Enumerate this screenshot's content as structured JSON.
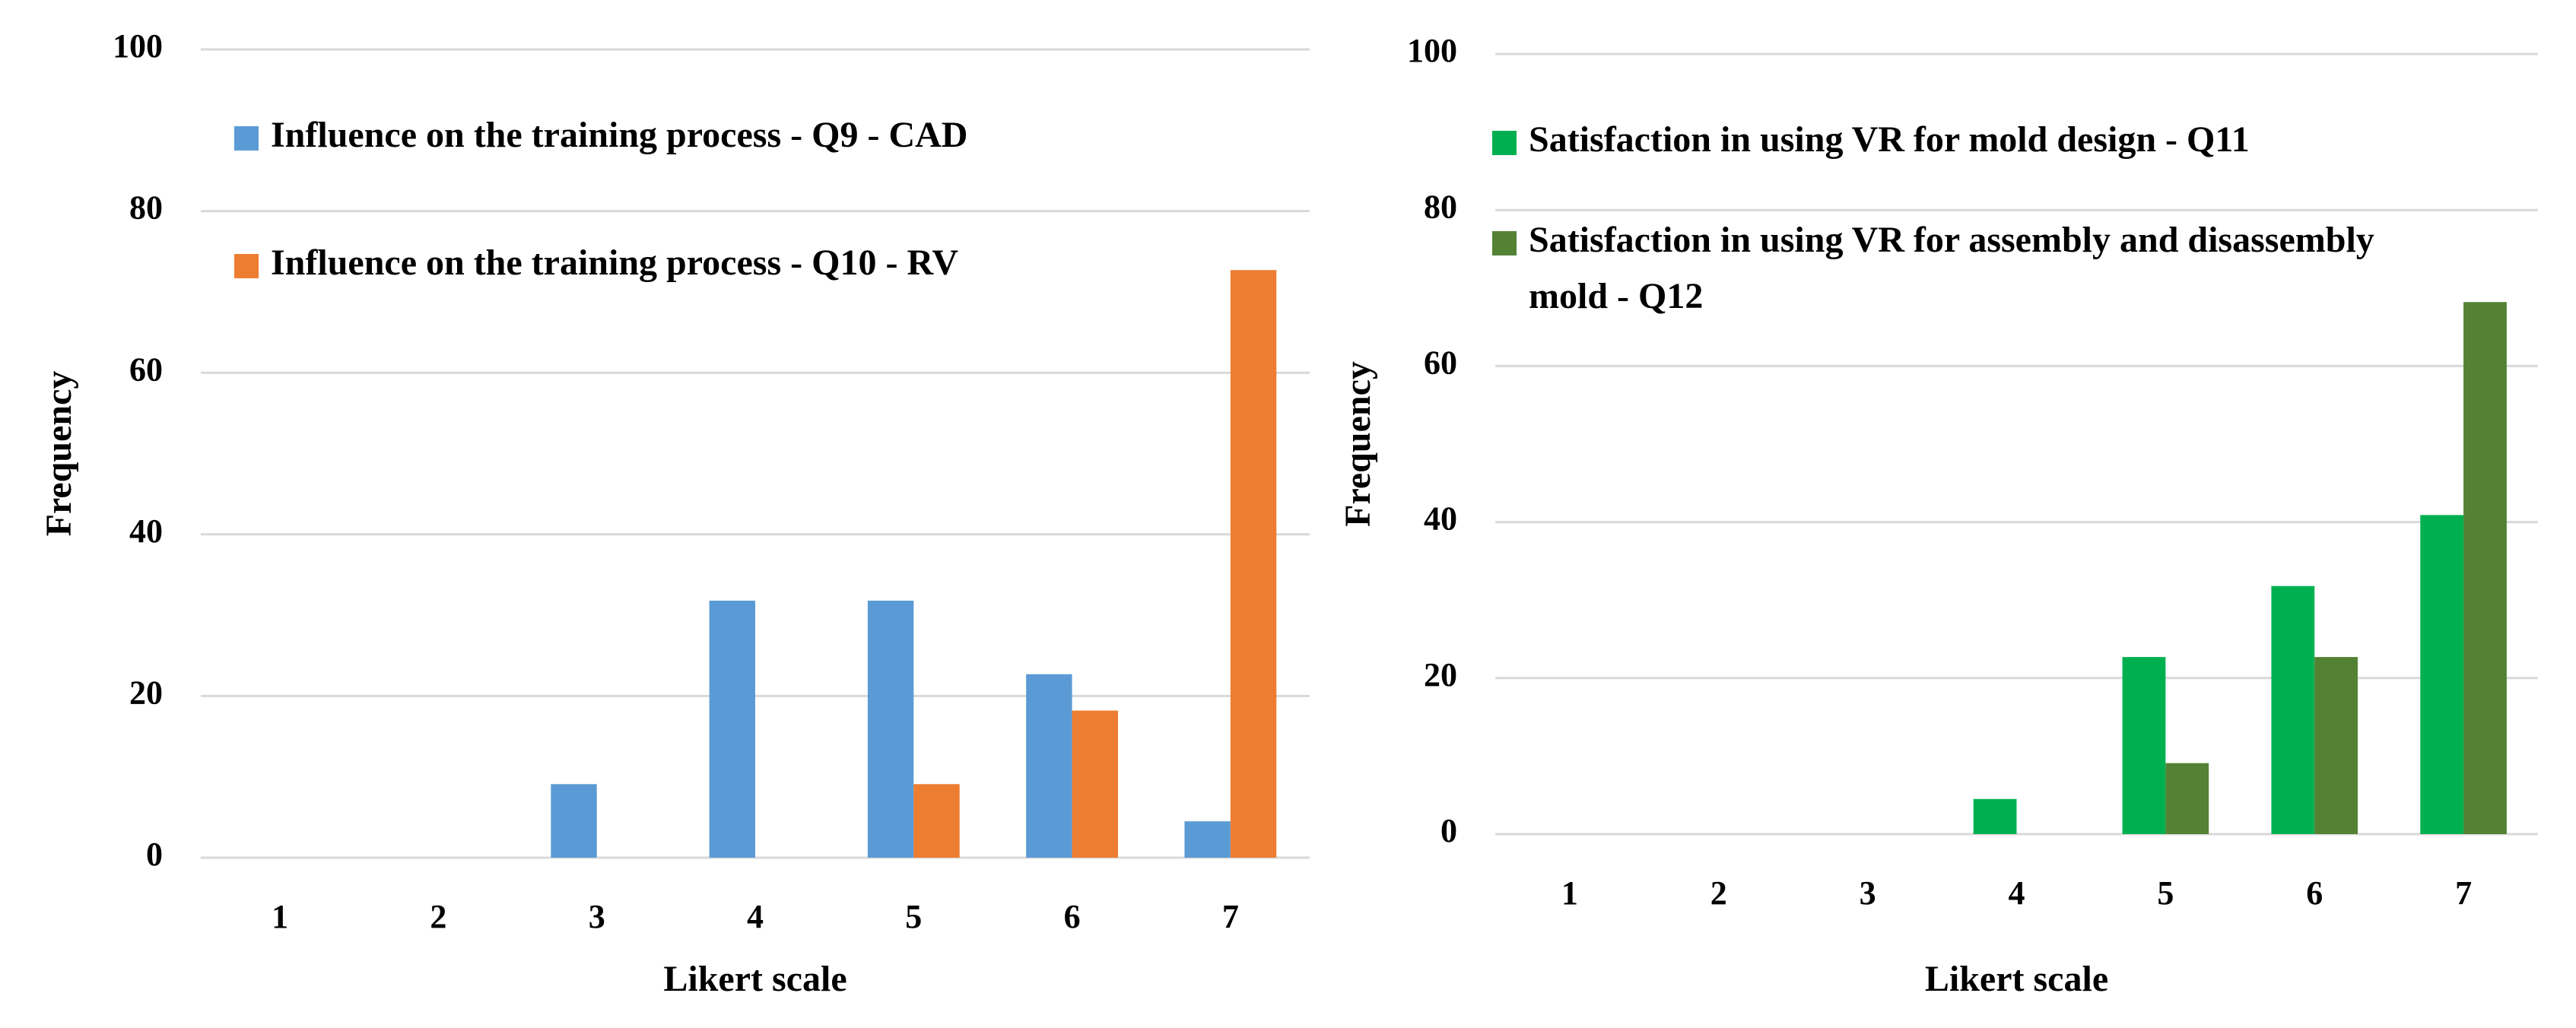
{
  "chart_data": [
    {
      "type": "bar",
      "x_label": "Likert scale",
      "y_label": "Frequency",
      "categories": [
        "1",
        "2",
        "3",
        "4",
        "5",
        "6",
        "7"
      ],
      "series": [
        {
          "name": "Influence on the training process - Q9 - CAD",
          "color": "#5b9bd5",
          "values": [
            0,
            0,
            9.1,
            31.8,
            31.8,
            22.7,
            4.5
          ]
        },
        {
          "name": "Influence on the training process - Q10 - RV",
          "color": "#ed7d31",
          "values": [
            0,
            0,
            0,
            0,
            9.1,
            18.2,
            72.7
          ]
        }
      ],
      "ylim": [
        0,
        100
      ],
      "yticks": [
        0,
        20,
        40,
        60,
        80,
        100
      ],
      "grid": true
    },
    {
      "type": "bar",
      "x_label": "Likert scale",
      "y_label": "Frequency",
      "categories": [
        "1",
        "2",
        "3",
        "4",
        "5",
        "6",
        "7"
      ],
      "series": [
        {
          "name": "Satisfaction in using VR for mold design - Q11",
          "color": "#00b050",
          "values": [
            0,
            0,
            0,
            4.5,
            22.7,
            31.8,
            40.9
          ]
        },
        {
          "name": "Satisfaction in using VR for assembly and disassembly mold - Q12",
          "color": "#548235",
          "values": [
            0,
            0,
            0,
            0,
            9.1,
            22.7,
            68.2
          ]
        }
      ],
      "ylim": [
        0,
        100
      ],
      "yticks": [
        0,
        20,
        40,
        60,
        80,
        100
      ],
      "grid": true
    }
  ]
}
